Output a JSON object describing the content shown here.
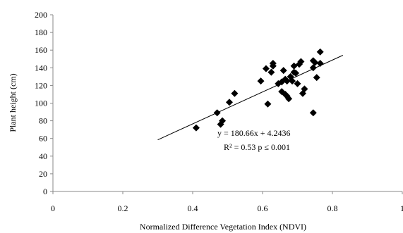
{
  "chart_data": {
    "type": "scatter",
    "xlabel": "Normalized Difference Vegetation Index (NDVI)",
    "ylabel": "Plant height (cm)",
    "xlim": [
      0,
      1
    ],
    "ylim": [
      0,
      200
    ],
    "x_ticks": [
      "0",
      "0.2",
      "0.4",
      "0.6",
      "0.8",
      "1"
    ],
    "y_ticks": [
      "0",
      "20",
      "40",
      "60",
      "80",
      "100",
      "120",
      "140",
      "160",
      "180",
      "200"
    ],
    "grid": false,
    "marker": "diamond",
    "series": [
      {
        "x": [
          0.41,
          0.47,
          0.48,
          0.485,
          0.505,
          0.52,
          0.595,
          0.61,
          0.615,
          0.625,
          0.63,
          0.63,
          0.645,
          0.655,
          0.655,
          0.66,
          0.665,
          0.665,
          0.67,
          0.67,
          0.675,
          0.68,
          0.685,
          0.69,
          0.69,
          0.695,
          0.7,
          0.705,
          0.71,
          0.715,
          0.72,
          0.745,
          0.745,
          0.75,
          0.755,
          0.765,
          0.765,
          0.745
        ],
        "y": [
          72,
          89,
          76,
          80,
          101,
          111,
          125,
          139,
          99,
          135,
          145,
          142,
          122,
          124,
          113,
          137,
          110,
          127,
          108,
          125,
          105,
          130,
          125,
          142,
          135,
          134,
          122,
          144,
          147,
          111,
          116,
          148,
          140,
          146,
          129,
          158,
          145,
          89
        ]
      }
    ],
    "trendline": {
      "slope": 180.66,
      "intercept": 4.2436,
      "x_range": [
        0.3,
        0.83
      ]
    },
    "annotations": {
      "equation": "y = 180.66x + 4.2436",
      "stats": "R² = 0.53 p ≤ 0.001"
    },
    "colors": {
      "marker": "#000000",
      "trendline": "#000000",
      "axes": "#888888"
    }
  }
}
